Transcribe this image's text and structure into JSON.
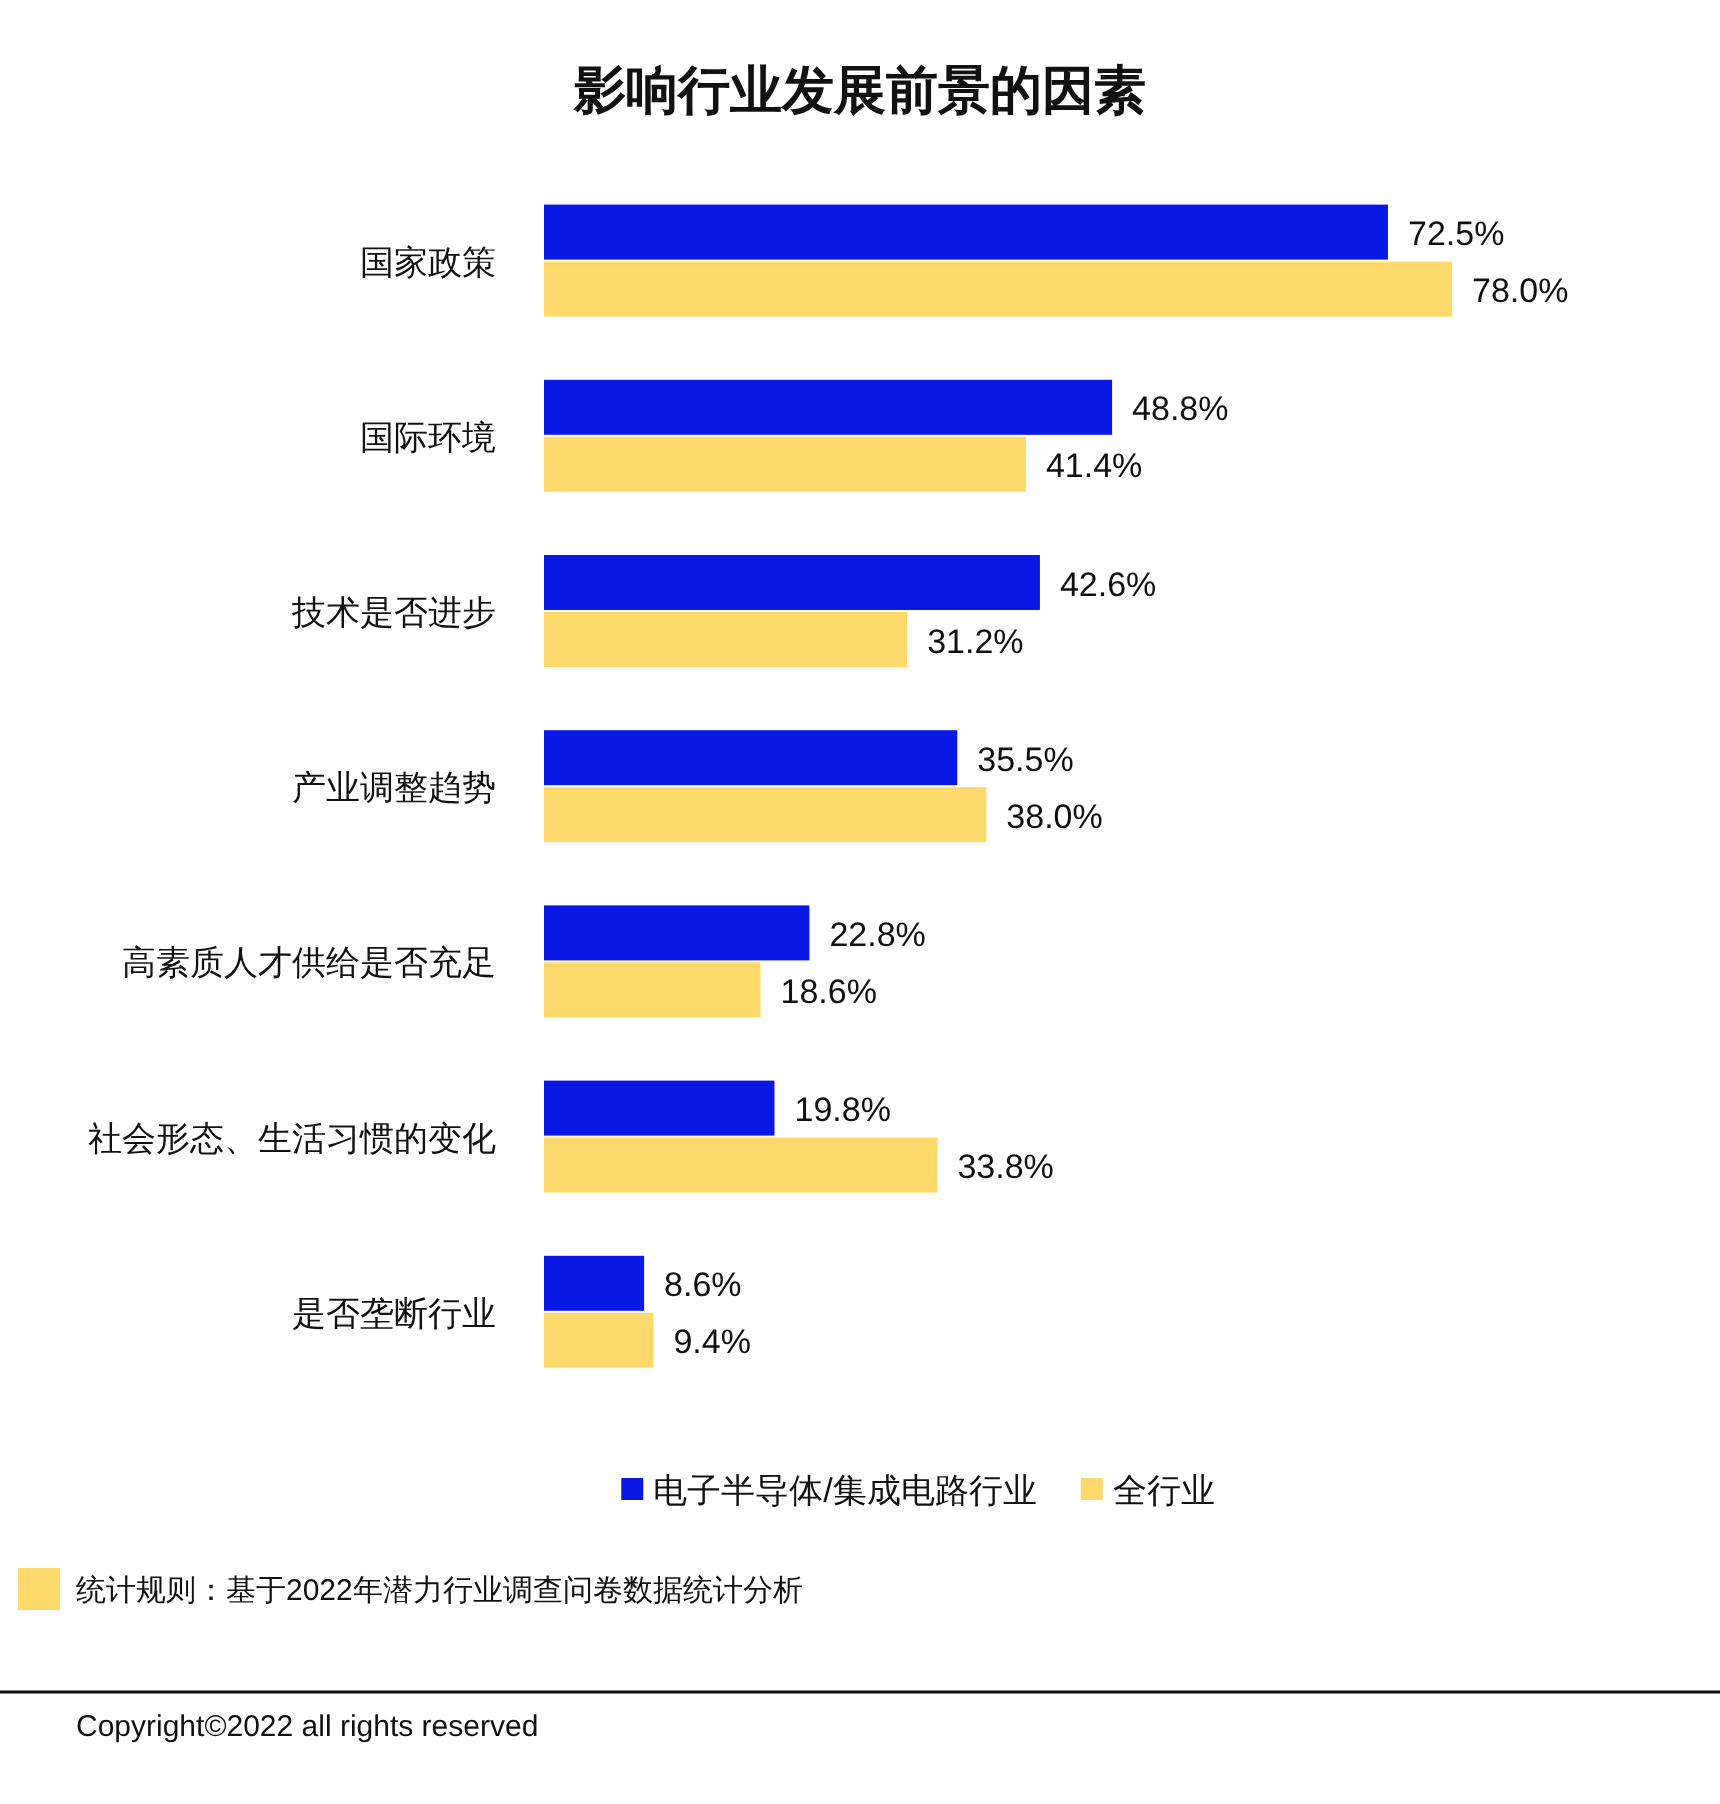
{
  "chart_data": {
    "type": "bar",
    "orientation": "horizontal",
    "title": "影响行业发展前景的因素",
    "categories": [
      "国家政策",
      "国际环境",
      "技术是否进步",
      "产业调整趋势",
      "高素质人才供给是否充足",
      "社会形态、生活习惯的变化",
      "是否垄断行业"
    ],
    "series": [
      {
        "name": "电子半导体/集成电路行业",
        "color": "#0a18e6",
        "values": [
          72.5,
          48.8,
          42.6,
          35.5,
          22.8,
          19.8,
          8.6
        ],
        "value_labels": [
          "72.5%",
          "48.8%",
          "42.6%",
          "35.5%",
          "22.8%",
          "19.8%",
          "8.6%"
        ]
      },
      {
        "name": "全行业",
        "color": "#fdd96b",
        "values": [
          78.0,
          41.4,
          31.2,
          38.0,
          18.6,
          33.8,
          9.4
        ],
        "value_labels": [
          "78.0%",
          "41.4%",
          "31.2%",
          "38.0%",
          "18.6%",
          "33.8%",
          "9.4%"
        ]
      }
    ],
    "legend": "bottom",
    "annotations": [
      "统计规则：基于2022年潜力行业调查问卷数据统计分析",
      "Copyright©2022 all rights reserved"
    ]
  }
}
